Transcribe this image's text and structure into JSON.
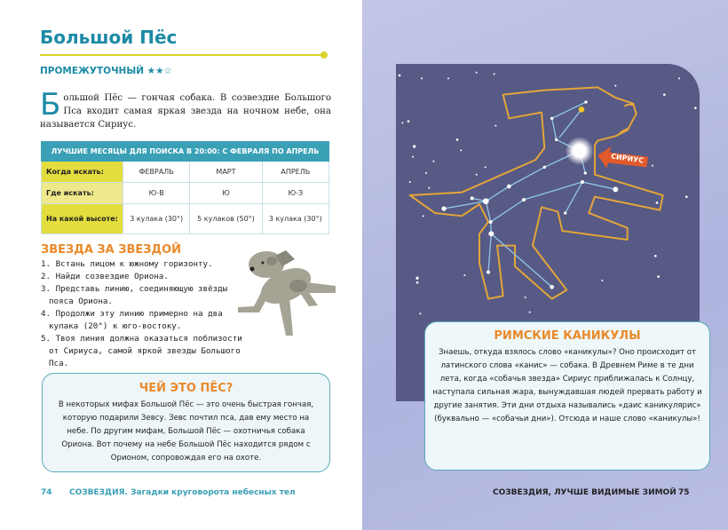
{
  "left_page": {
    "title": "Большой Пёс",
    "level": "ПРОМЕЖУТОЧНЫЙ ★★☆",
    "intro_dropcap": "Б",
    "intro_text": "ольшой Пёс — гончая собака. В созвездие Большого Пса входит самая яркая звезда на ночном небе, она называется Сириус.",
    "table": {
      "header": "ЛУЧШИЕ МЕСЯЦЫ ДЛЯ ПОИСКА В 20:00: С ФЕВРАЛЯ ПО АПРЕЛЬ",
      "rows": [
        {
          "label": "Когда искать:",
          "values": [
            "ФЕВРАЛЬ",
            "МАРТ",
            "АПРЕЛЬ"
          ]
        },
        {
          "label": "Где искать:",
          "values": [
            "Ю-В",
            "Ю",
            "Ю-З"
          ]
        },
        {
          "label": "На какой высоте:",
          "values": [
            "3 кулака (30°)",
            "5 кулаков (50°)",
            "3 кулака (30°)"
          ]
        }
      ]
    },
    "steps_title": "ЗВЕЗДА ЗА ЗВЕЗДОЙ",
    "steps": [
      "1. Встань лицом к южному горизонту.",
      "2. Найди созвездие Ориона.",
      "3. Представь линию, соединяющую звёзды пояса Ориона.",
      "4. Продолжи эту линию примерно на два кулака (20°) к юго-востоку.",
      "5. Твоя линия должна оказаться поблизости от Сириуса, самой яркой звезды Большого Пса."
    ],
    "box": {
      "title": "ЧЕЙ ЭТО ПЁС?",
      "text": "В некоторых мифах Большой Пёс — это очень быстрая гончая, которую подарили Зевсу. Зевс почтил пса, дав ему место на небе. По другим мифам, Большой Пёс — охотничья собака Ориона. Вот почему на небе Большой Пёс находится рядом с Орионом, сопровождая его на охоте."
    },
    "page_number": "74",
    "footer": "СОЗВЕЗДИЯ. Загадки круговорота небесных тел"
  },
  "right_page": {
    "sirius_label": "СИРИУС",
    "box": {
      "title": "РИМСКИЕ КАНИКУЛЫ",
      "text": "Знаешь, откуда взялось слово «каникулы»? Оно происходит от латинского слова «канис» — собака. В Древнем Риме в те дни лета, когда «собачья звезда» Сириус приближалась к Солнцу, наступала сильная жара, вынуждавшая людей прервать работу и другие занятия. Эти дни отдыха назывались «даис каникулярис» (буквально — «собачьи дни»). Отсюда и наше слово «каникулы»!"
    },
    "footer": "СОЗВЕЗДИЯ, ЛУЧШЕ ВИДИМЫЕ ЗИМОЙ",
    "page_number": "75"
  },
  "colors": {
    "accent": "#1c8aa6",
    "orange": "#e98a2a",
    "yellow": "#e4dd3e",
    "sky": "#575a85"
  }
}
